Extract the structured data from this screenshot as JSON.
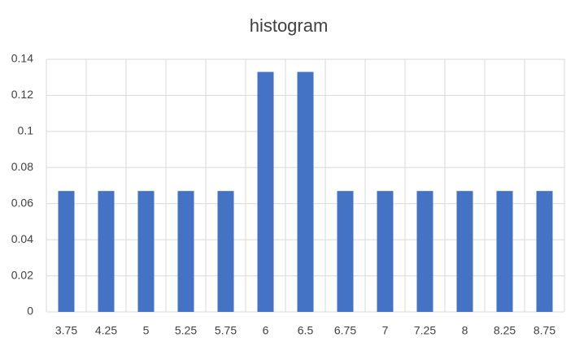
{
  "chart_data": {
    "type": "bar",
    "title": "histogram",
    "categories": [
      "3.75",
      "4.25",
      "5",
      "5.25",
      "5.75",
      "6",
      "6.5",
      "6.75",
      "7",
      "7.25",
      "8",
      "8.25",
      "8.75"
    ],
    "values": [
      0.067,
      0.067,
      0.067,
      0.067,
      0.067,
      0.133,
      0.133,
      0.067,
      0.067,
      0.067,
      0.067,
      0.067,
      0.067
    ],
    "color": "#4472c4",
    "ylim": [
      0,
      0.14
    ],
    "yticks": [
      0,
      0.02,
      0.04,
      0.06,
      0.08,
      0.1,
      0.12,
      0.14
    ],
    "grid": true
  }
}
